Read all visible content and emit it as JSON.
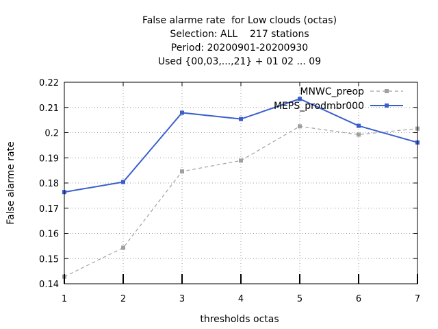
{
  "chart_data": {
    "type": "line",
    "title_lines": [
      "False alarme rate  for Low clouds (octas)",
      "Selection: ALL    217 stations",
      "Period: 20200901-20200930",
      "Used {00,03,...,21} + 01 02 ... 09"
    ],
    "xlabel": "thresholds octas",
    "ylabel": "False alarme rate",
    "x": [
      1,
      2,
      3,
      4,
      5,
      6,
      7
    ],
    "x_ticks": [
      "1",
      "2",
      "3",
      "4",
      "5",
      "6",
      "7"
    ],
    "xlim": [
      1,
      7
    ],
    "ylim": [
      0.14,
      0.22
    ],
    "y_ticks": [
      "0.14",
      "0.15",
      "0.16",
      "0.17",
      "0.18",
      "0.19",
      "0.2",
      "0.21",
      "0.22"
    ],
    "grid": true,
    "legend_position": "top-right",
    "series": [
      {
        "name": "MNWC_preop",
        "color": "#a0a0a0",
        "dashed": true,
        "values": [
          0.1428,
          0.1543,
          0.1846,
          0.1889,
          0.2025,
          0.1992,
          0.2016
        ]
      },
      {
        "name": "MEPS_prodmbr000",
        "color": "#3a5fcd",
        "dashed": false,
        "values": [
          0.1764,
          0.1804,
          0.2079,
          0.2054,
          0.2134,
          0.2027,
          0.1961
        ]
      }
    ]
  }
}
